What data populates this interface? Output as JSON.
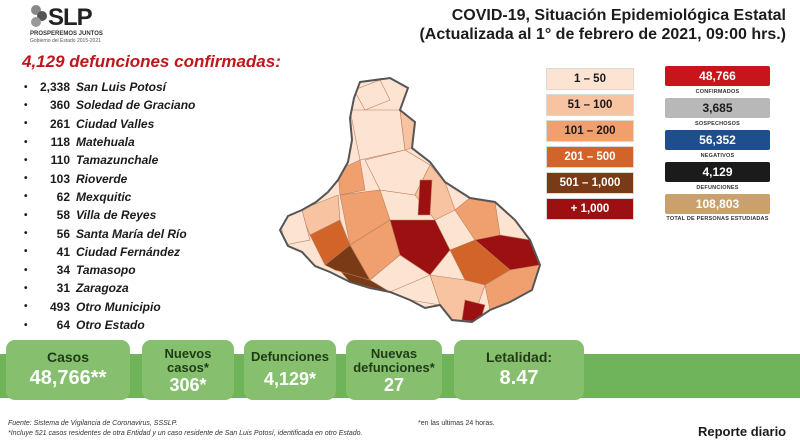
{
  "logo": {
    "text": "SLP",
    "tagline": "PROSPEREMOS JUNTOS",
    "subline": "Gobierno del Estado 2015-2021"
  },
  "title": {
    "line1": "COVID-19, Situación Epidemiológica Estatal",
    "line2": "(Actualizada al 1° de febrero de 2021, 09:00 hrs.)"
  },
  "deaths_heading": "4,129 defunciones confirmadas:",
  "municipalities": [
    {
      "value": "2,338",
      "name": "San Luis Potosí"
    },
    {
      "value": "360",
      "name": "Soledad de Graciano"
    },
    {
      "value": "261",
      "name": "Ciudad Valles"
    },
    {
      "value": "118",
      "name": "Matehuala"
    },
    {
      "value": "110",
      "name": "Tamazunchale"
    },
    {
      "value": "103",
      "name": "Rioverde"
    },
    {
      "value": "62",
      "name": "Mexquitic"
    },
    {
      "value": "58",
      "name": "Villa de Reyes"
    },
    {
      "value": "56",
      "name": "Santa María del Río"
    },
    {
      "value": "41",
      "name": "Ciudad Fernández"
    },
    {
      "value": "34",
      "name": "Tamasopo"
    },
    {
      "value": "31",
      "name": "Zaragoza"
    },
    {
      "value": "493",
      "name": "Otro Municipio"
    },
    {
      "value": "64",
      "name": "Otro Estado"
    }
  ],
  "legend": [
    {
      "label": "1 – 50",
      "color": "#fde3d2",
      "text_color": "#1b1b1b"
    },
    {
      "label": "51 – 100",
      "color": "#f8c3a0",
      "text_color": "#1b1b1b"
    },
    {
      "label": "101 – 200",
      "color": "#f0a06e",
      "text_color": "#1b1b1b"
    },
    {
      "label": "201 – 500",
      "color": "#d2642a",
      "text_color": "#ffffff"
    },
    {
      "label": "501 – 1,000",
      "color": "#7a3a16",
      "text_color": "#ffffff"
    },
    {
      "label": "+ 1,000",
      "color": "#9c1012",
      "text_color": "#ffffff"
    }
  ],
  "stats": [
    {
      "value": "48,766",
      "label": "CONFIRMADOS",
      "color": "#c8151b",
      "text_color": "#ffffff"
    },
    {
      "value": "3,685",
      "label": "SOSPECHOSOS",
      "color": "#b8b8b8",
      "text_color": "#1b1b1b"
    },
    {
      "value": "56,352",
      "label": "NEGATIVOS",
      "color": "#1f4e8c",
      "text_color": "#ffffff"
    },
    {
      "value": "4,129",
      "label": "DEFUNCIONES",
      "color": "#1b1b1b",
      "text_color": "#ffffff"
    },
    {
      "value": "108,803",
      "label": "TOTAL DE PERSONAS ESTUDIADAS",
      "color": "#caa06c",
      "text_color": "#ffffff"
    }
  ],
  "summary": {
    "casos": {
      "label": "Casos",
      "value": "48,766**"
    },
    "nuevos_casos": {
      "label_1": "Nuevos",
      "label_2": "casos*",
      "value": "306*"
    },
    "defunciones": {
      "label": "Defunciones",
      "value": "4,129*"
    },
    "nuevas_defunciones": {
      "label_1": "Nuevas",
      "label_2": "defunciones*",
      "value": "27"
    },
    "letalidad": {
      "label": "Letalidad:",
      "value": "8.47"
    }
  },
  "footer": {
    "source": "Fuente: Sistema de Vigilancia de Coronavirus, SSSLP.",
    "note": "*Incluye 521 casos residentes de otra Entidad y un caso residente de San Luis Potosí, identificada en otro Estado.",
    "last24": "*en las ultimas 24 horas.",
    "report": "Reporte diario"
  },
  "colors": {
    "green_band": "#6fb45a",
    "green_card": "#86c06e",
    "heading_red": "#c0161d"
  }
}
